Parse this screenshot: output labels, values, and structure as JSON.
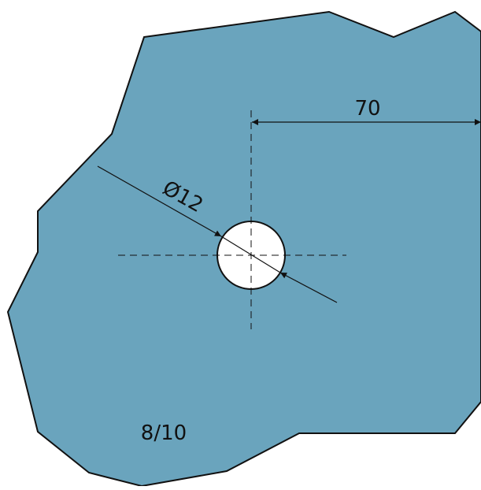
{
  "drawing": {
    "plate_color": "#6aa4bd",
    "outline_color": "#111111",
    "hole_fill": "#ffffff",
    "dimension_distance": "70",
    "dimension_diameter": "Ø12",
    "thickness_label": "8/10"
  }
}
